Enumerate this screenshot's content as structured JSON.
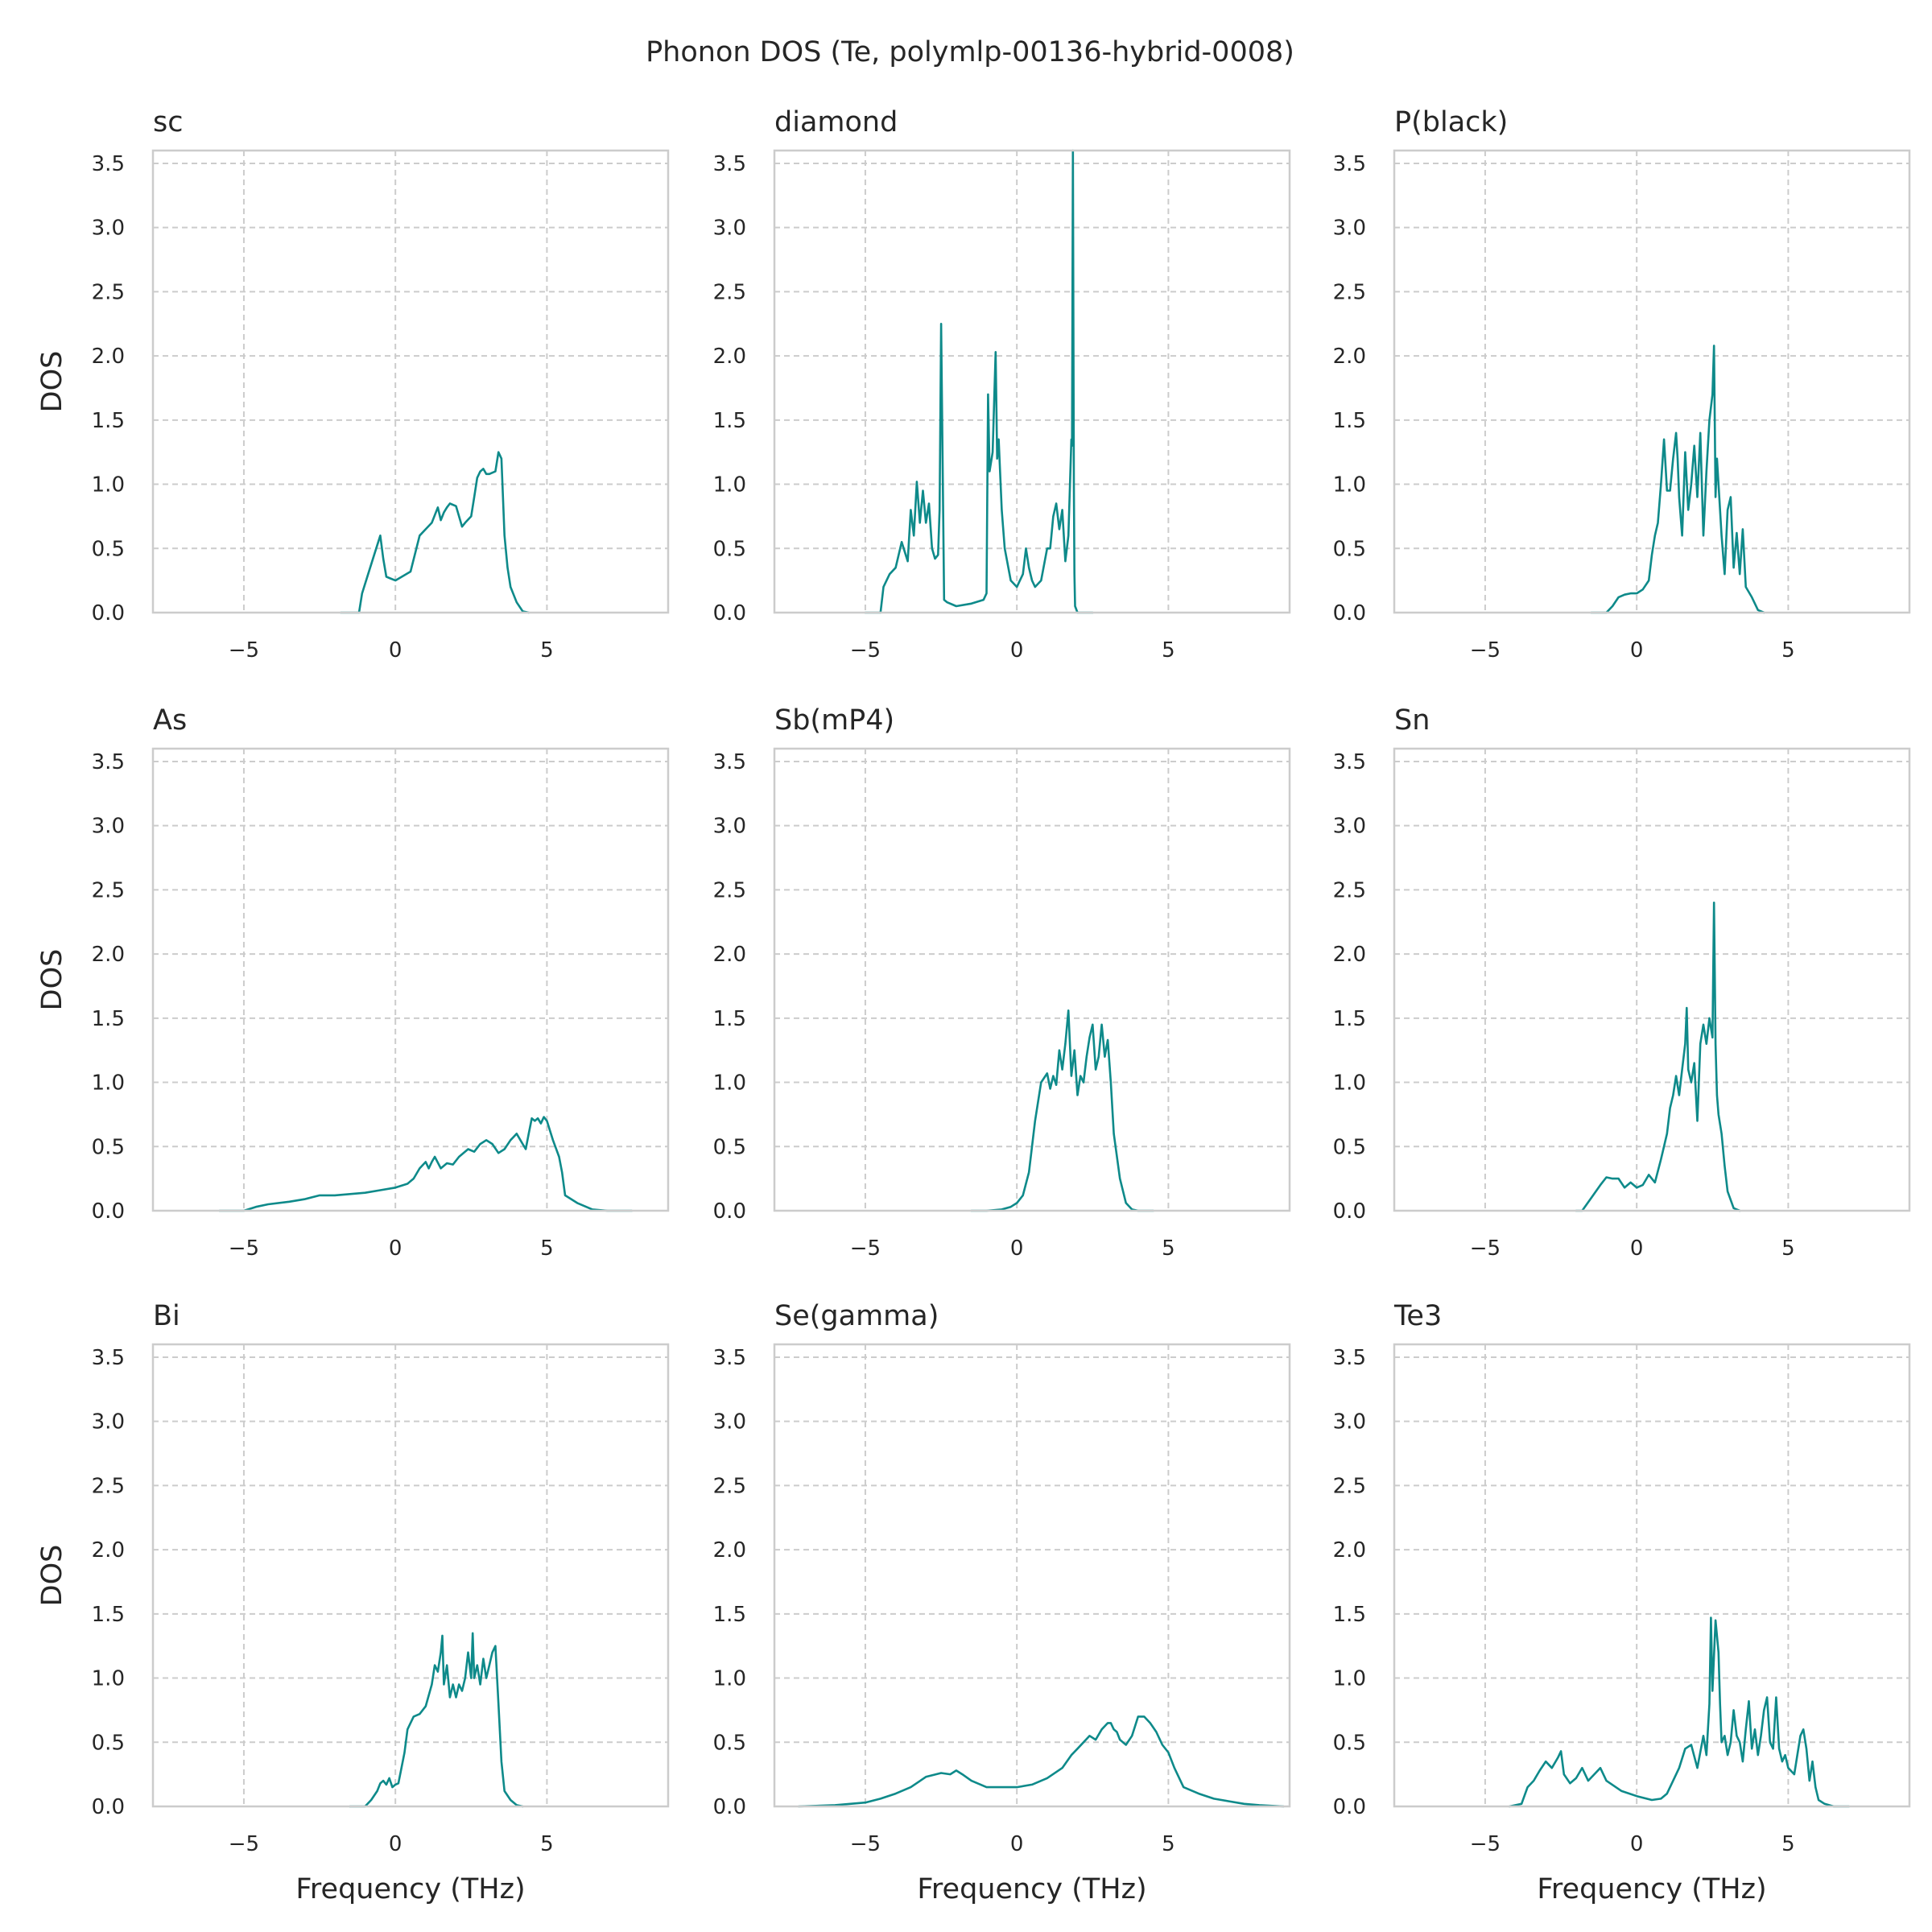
{
  "chart_data": {
    "type": "line",
    "title": "Phonon DOS (Te, polymlp-00136-hybrid-0008)",
    "xlabel": "Frequency (THz)",
    "ylabel": "DOS",
    "xlim": [
      -8,
      9
    ],
    "ylim": [
      0,
      3.6
    ],
    "xticks": [
      -5,
      0,
      5
    ],
    "xtick_labels": [
      "−5",
      "0",
      "5"
    ],
    "yticks": [
      0,
      0.5,
      1,
      1.5,
      2,
      2.5,
      3,
      3.5
    ],
    "ytick_labels": [
      "0.0",
      "0.5",
      "1.0",
      "1.5",
      "2.0",
      "2.5",
      "3.0",
      "3.5"
    ],
    "grid": true,
    "line_color": "#0e8a8a",
    "panels": [
      {
        "name": "sc",
        "x": [
          -1.8,
          -1.2,
          -1.1,
          -0.9,
          -0.7,
          -0.5,
          -0.4,
          -0.3,
          -0.2,
          0.0,
          0.5,
          0.8,
          1.0,
          1.2,
          1.4,
          1.5,
          1.6,
          1.7,
          1.8,
          2.0,
          2.2,
          2.3,
          2.5,
          2.6,
          2.7,
          2.8,
          2.9,
          3.0,
          3.1,
          3.3,
          3.4,
          3.5,
          3.6,
          3.7,
          3.8,
          4.0,
          4.2,
          4.4
        ],
        "y": [
          0.0,
          0.0,
          0.15,
          0.3,
          0.45,
          0.6,
          0.42,
          0.28,
          0.27,
          0.25,
          0.32,
          0.6,
          0.65,
          0.7,
          0.82,
          0.72,
          0.78,
          0.82,
          0.85,
          0.83,
          0.67,
          0.7,
          0.75,
          0.9,
          1.05,
          1.1,
          1.12,
          1.08,
          1.08,
          1.1,
          1.25,
          1.2,
          0.6,
          0.35,
          0.2,
          0.08,
          0.01,
          0.0
        ]
      },
      {
        "name": "diamond",
        "x": [
          -5.0,
          -4.5,
          -4.4,
          -4.2,
          -4.0,
          -3.8,
          -3.6,
          -3.5,
          -3.4,
          -3.3,
          -3.2,
          -3.1,
          -3.0,
          -2.9,
          -2.8,
          -2.7,
          -2.6,
          -2.55,
          -2.5,
          -2.4,
          -2.3,
          -2.0,
          -1.5,
          -1.1,
          -1.0,
          -0.95,
          -0.9,
          -0.8,
          -0.7,
          -0.65,
          -0.6,
          -0.5,
          -0.4,
          -0.2,
          0.0,
          0.2,
          0.3,
          0.4,
          0.5,
          0.6,
          0.8,
          1.0,
          1.1,
          1.2,
          1.3,
          1.4,
          1.5,
          1.6,
          1.7,
          1.8,
          1.82,
          1.85,
          1.88,
          1.9,
          1.92,
          2.0,
          2.5
        ],
        "y": [
          0.0,
          0.0,
          0.2,
          0.3,
          0.35,
          0.55,
          0.4,
          0.8,
          0.6,
          1.02,
          0.7,
          0.95,
          0.7,
          0.85,
          0.5,
          0.42,
          0.45,
          0.8,
          2.25,
          0.1,
          0.08,
          0.05,
          0.07,
          0.1,
          0.15,
          1.7,
          1.1,
          1.25,
          2.03,
          1.2,
          1.35,
          0.8,
          0.5,
          0.25,
          0.2,
          0.3,
          0.5,
          0.35,
          0.25,
          0.2,
          0.25,
          0.5,
          0.5,
          0.75,
          0.85,
          0.65,
          0.8,
          0.4,
          0.6,
          1.35,
          1.3,
          3.6,
          1.0,
          0.3,
          0.05,
          0.0,
          0.0
        ]
      },
      {
        "name": "P(black)",
        "x": [
          -1.5,
          -1.0,
          -0.8,
          -0.6,
          -0.4,
          -0.2,
          0.0,
          0.2,
          0.4,
          0.5,
          0.6,
          0.7,
          0.8,
          0.9,
          1.0,
          1.1,
          1.2,
          1.3,
          1.35,
          1.4,
          1.5,
          1.6,
          1.7,
          1.8,
          1.9,
          2.0,
          2.1,
          2.2,
          2.3,
          2.4,
          2.5,
          2.55,
          2.6,
          2.65,
          2.7,
          2.8,
          2.9,
          3.0,
          3.1,
          3.2,
          3.3,
          3.4,
          3.5,
          3.6,
          3.8,
          4.0,
          4.2
        ],
        "y": [
          0.0,
          0.0,
          0.05,
          0.12,
          0.14,
          0.15,
          0.15,
          0.18,
          0.25,
          0.45,
          0.6,
          0.7,
          1.0,
          1.35,
          0.95,
          0.95,
          1.2,
          1.4,
          1.2,
          0.9,
          0.6,
          1.25,
          0.8,
          1.0,
          1.3,
          0.9,
          1.4,
          0.6,
          1.1,
          1.5,
          1.7,
          2.08,
          0.9,
          1.2,
          1.0,
          0.6,
          0.3,
          0.8,
          0.9,
          0.35,
          0.62,
          0.3,
          0.65,
          0.2,
          0.12,
          0.02,
          0.0
        ]
      },
      {
        "name": "As",
        "x": [
          -5.8,
          -5.0,
          -4.6,
          -4.2,
          -3.5,
          -3.0,
          -2.5,
          -2.0,
          -1.5,
          -1.0,
          -0.5,
          0.0,
          0.4,
          0.6,
          0.8,
          1.0,
          1.1,
          1.2,
          1.3,
          1.5,
          1.7,
          1.9,
          2.1,
          2.4,
          2.6,
          2.8,
          3.0,
          3.2,
          3.4,
          3.6,
          3.8,
          4.0,
          4.2,
          4.3,
          4.4,
          4.5,
          4.6,
          4.7,
          4.8,
          4.9,
          5.0,
          5.2,
          5.4,
          5.5,
          5.6,
          6.0,
          6.5,
          7.0,
          7.8
        ],
        "y": [
          0.0,
          0.0,
          0.03,
          0.05,
          0.07,
          0.09,
          0.12,
          0.12,
          0.13,
          0.14,
          0.16,
          0.18,
          0.21,
          0.25,
          0.33,
          0.38,
          0.33,
          0.38,
          0.42,
          0.33,
          0.37,
          0.36,
          0.42,
          0.48,
          0.46,
          0.52,
          0.55,
          0.52,
          0.45,
          0.48,
          0.55,
          0.6,
          0.52,
          0.48,
          0.6,
          0.72,
          0.7,
          0.72,
          0.68,
          0.73,
          0.7,
          0.55,
          0.42,
          0.3,
          0.12,
          0.06,
          0.01,
          0.0,
          0.0
        ]
      },
      {
        "name": "Sb(mP4)",
        "x": [
          -1.5,
          -1.0,
          -0.5,
          -0.2,
          0.0,
          0.2,
          0.4,
          0.6,
          0.8,
          1.0,
          1.1,
          1.2,
          1.3,
          1.4,
          1.5,
          1.6,
          1.7,
          1.8,
          1.9,
          2.0,
          2.1,
          2.2,
          2.3,
          2.4,
          2.5,
          2.6,
          2.7,
          2.8,
          2.9,
          3.0,
          3.1,
          3.2,
          3.4,
          3.6,
          3.8,
          4.0,
          4.5
        ],
        "y": [
          0.0,
          0.0,
          0.01,
          0.03,
          0.06,
          0.12,
          0.3,
          0.7,
          1.0,
          1.07,
          0.95,
          1.05,
          0.98,
          1.25,
          1.1,
          1.3,
          1.56,
          1.05,
          1.25,
          0.9,
          1.05,
          1.0,
          1.2,
          1.35,
          1.45,
          1.1,
          1.2,
          1.45,
          1.2,
          1.33,
          1.0,
          0.6,
          0.25,
          0.06,
          0.01,
          0.0,
          0.0
        ]
      },
      {
        "name": "Sn",
        "x": [
          -2.0,
          -1.8,
          -1.5,
          -1.2,
          -1.0,
          -0.8,
          -0.6,
          -0.4,
          -0.2,
          0.0,
          0.2,
          0.4,
          0.6,
          0.8,
          1.0,
          1.1,
          1.2,
          1.3,
          1.4,
          1.5,
          1.6,
          1.65,
          1.7,
          1.8,
          1.9,
          2.0,
          2.1,
          2.2,
          2.3,
          2.4,
          2.5,
          2.55,
          2.6,
          2.65,
          2.7,
          2.8,
          2.9,
          3.0,
          3.2,
          3.4
        ],
        "y": [
          0.0,
          0.0,
          0.1,
          0.2,
          0.26,
          0.25,
          0.25,
          0.18,
          0.22,
          0.18,
          0.2,
          0.28,
          0.22,
          0.4,
          0.6,
          0.8,
          0.9,
          1.05,
          0.9,
          1.1,
          1.3,
          1.58,
          1.1,
          1.0,
          1.15,
          0.7,
          1.3,
          1.45,
          1.3,
          1.5,
          1.35,
          2.4,
          1.3,
          0.9,
          0.75,
          0.6,
          0.35,
          0.15,
          0.02,
          0.0
        ]
      },
      {
        "name": "Bi",
        "x": [
          -1.5,
          -1.0,
          -0.8,
          -0.6,
          -0.5,
          -0.4,
          -0.3,
          -0.2,
          -0.1,
          0.0,
          0.1,
          0.2,
          0.3,
          0.4,
          0.6,
          0.8,
          1.0,
          1.2,
          1.3,
          1.4,
          1.5,
          1.55,
          1.6,
          1.7,
          1.8,
          1.9,
          2.0,
          2.1,
          2.2,
          2.3,
          2.4,
          2.5,
          2.55,
          2.6,
          2.7,
          2.8,
          2.9,
          3.0,
          3.1,
          3.2,
          3.3,
          3.4,
          3.5,
          3.6,
          3.8,
          4.0,
          4.2
        ],
        "y": [
          0.0,
          0.0,
          0.05,
          0.12,
          0.18,
          0.2,
          0.17,
          0.22,
          0.15,
          0.17,
          0.18,
          0.3,
          0.42,
          0.6,
          0.7,
          0.72,
          0.78,
          0.95,
          1.1,
          1.05,
          1.2,
          1.33,
          0.95,
          1.1,
          0.85,
          0.95,
          0.85,
          0.95,
          0.9,
          1.0,
          1.2,
          1.0,
          1.35,
          1.0,
          1.1,
          0.95,
          1.15,
          1.0,
          1.1,
          1.2,
          1.25,
          0.8,
          0.35,
          0.12,
          0.05,
          0.01,
          0.0
        ]
      },
      {
        "name": "Se(gamma)",
        "x": [
          -7.2,
          -6.0,
          -5.0,
          -4.5,
          -4.0,
          -3.5,
          -3.0,
          -2.5,
          -2.2,
          -2.0,
          -1.8,
          -1.5,
          -1.0,
          -0.5,
          0.0,
          0.5,
          1.0,
          1.5,
          1.8,
          2.0,
          2.2,
          2.4,
          2.6,
          2.8,
          3.0,
          3.1,
          3.2,
          3.3,
          3.4,
          3.6,
          3.8,
          4.0,
          4.2,
          4.4,
          4.6,
          4.8,
          5.0,
          5.2,
          5.5,
          6.0,
          6.5,
          7.0,
          7.5,
          8.0,
          8.8
        ],
        "y": [
          0.0,
          0.01,
          0.03,
          0.06,
          0.1,
          0.15,
          0.23,
          0.26,
          0.25,
          0.28,
          0.25,
          0.2,
          0.15,
          0.15,
          0.15,
          0.17,
          0.22,
          0.3,
          0.4,
          0.45,
          0.5,
          0.55,
          0.52,
          0.6,
          0.65,
          0.65,
          0.6,
          0.58,
          0.52,
          0.48,
          0.55,
          0.7,
          0.7,
          0.65,
          0.58,
          0.48,
          0.42,
          0.3,
          0.15,
          0.1,
          0.06,
          0.04,
          0.02,
          0.01,
          0.0
        ]
      },
      {
        "name": "Te3",
        "x": [
          -4.2,
          -3.8,
          -3.6,
          -3.4,
          -3.2,
          -3.0,
          -2.8,
          -2.6,
          -2.5,
          -2.4,
          -2.2,
          -2.0,
          -1.8,
          -1.6,
          -1.4,
          -1.2,
          -1.0,
          -0.5,
          0.0,
          0.5,
          0.8,
          1.0,
          1.2,
          1.4,
          1.6,
          1.8,
          2.0,
          2.2,
          2.3,
          2.4,
          2.45,
          2.5,
          2.6,
          2.7,
          2.75,
          2.8,
          2.9,
          3.0,
          3.1,
          3.2,
          3.3,
          3.4,
          3.5,
          3.6,
          3.7,
          3.8,
          3.9,
          4.0,
          4.1,
          4.2,
          4.3,
          4.4,
          4.5,
          4.6,
          4.7,
          4.8,
          4.9,
          5.0,
          5.2,
          5.4,
          5.5,
          5.6,
          5.7,
          5.8,
          5.9,
          6.0,
          6.2,
          6.5,
          7.0
        ],
        "y": [
          0.0,
          0.02,
          0.15,
          0.2,
          0.28,
          0.35,
          0.3,
          0.38,
          0.43,
          0.25,
          0.18,
          0.22,
          0.3,
          0.2,
          0.25,
          0.3,
          0.2,
          0.12,
          0.08,
          0.05,
          0.06,
          0.1,
          0.2,
          0.3,
          0.45,
          0.48,
          0.3,
          0.55,
          0.4,
          0.8,
          1.47,
          0.9,
          1.45,
          1.2,
          0.8,
          0.5,
          0.55,
          0.4,
          0.5,
          0.75,
          0.55,
          0.5,
          0.35,
          0.6,
          0.82,
          0.45,
          0.6,
          0.4,
          0.55,
          0.75,
          0.85,
          0.5,
          0.45,
          0.85,
          0.45,
          0.35,
          0.4,
          0.3,
          0.25,
          0.55,
          0.6,
          0.45,
          0.2,
          0.35,
          0.15,
          0.05,
          0.02,
          0.0,
          0.0
        ]
      }
    ]
  }
}
